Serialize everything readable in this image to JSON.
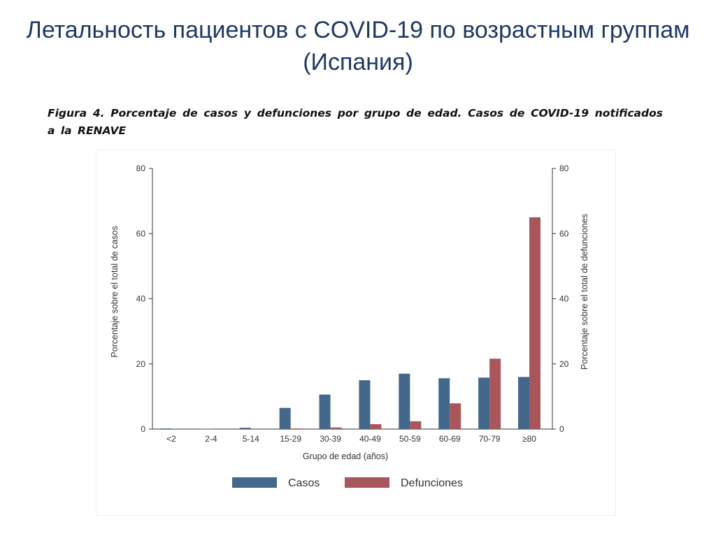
{
  "slide_title_line1": "Летальность пациентов с COVID-19 по возрастным группам",
  "slide_title_line2": "(Испания)",
  "figure_caption": "Figura 4. Porcentaje de casos y defunciones por grupo de edad. Casos de COVID-19 notificados a la RENAVE",
  "chart_data": {
    "type": "bar",
    "title": "",
    "xlabel": "Grupo de edad (años)",
    "ylabel": "Porcentaje sobre el total de casos",
    "y2label": "Porcentaje sobre el total de defunciones",
    "ylim": [
      0,
      80
    ],
    "y2lim": [
      0,
      80
    ],
    "yticks": [
      0,
      20,
      40,
      60,
      80
    ],
    "categories": [
      "<2",
      "2-4",
      "5-14",
      "15-29",
      "30-39",
      "40-49",
      "50-59",
      "60-69",
      "70-79",
      "≥80"
    ],
    "series": [
      {
        "name": "Casos",
        "axis": "left",
        "color": "#44678c",
        "values": [
          0.2,
          0.1,
          0.4,
          6.5,
          10.6,
          15.0,
          17.0,
          15.6,
          15.8,
          16.0
        ]
      },
      {
        "name": "Defunciones",
        "axis": "right",
        "color": "#a8555c",
        "values": [
          0.0,
          0.0,
          0.0,
          0.2,
          0.5,
          1.5,
          2.4,
          7.9,
          21.6,
          65.0
        ]
      }
    ],
    "legend": "bottom",
    "grid": false
  }
}
